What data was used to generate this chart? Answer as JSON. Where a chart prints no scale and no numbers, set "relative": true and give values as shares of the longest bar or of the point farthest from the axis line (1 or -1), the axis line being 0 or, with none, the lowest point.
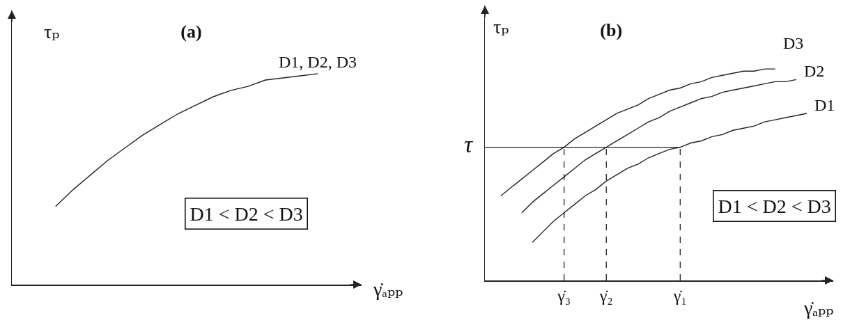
{
  "chart_data": [
    {
      "type": "line",
      "title": "(a)",
      "xlabel": "γ̇ₐₚₚ",
      "ylabel": "τₚ",
      "relative": true,
      "categories": [
        null,
        null,
        null,
        null,
        null,
        null,
        null,
        null,
        null,
        null,
        null,
        null,
        null,
        null,
        null,
        null,
        null,
        null,
        null,
        null
      ],
      "series": [
        {
          "name": "D1, D2, D3",
          "color": "#222222",
          "values": [
            null,
            null,
            0.37,
            0.45,
            0.52,
            0.59,
            0.65,
            0.71,
            0.76,
            0.81,
            0.85,
            0.89,
            0.92,
            0.94,
            0.97,
            0.98,
            0.99,
            1,
            null,
            null
          ]
        }
      ],
      "annotations": [
        "D1 < D2 < D3"
      ]
    },
    {
      "type": "line",
      "title": "(b)",
      "xlabel": "γ̇ₐₚₚ",
      "ylabel": "τₚ",
      "relative": true,
      "categories": [
        null,
        null,
        null,
        null,
        null,
        null,
        null,
        "γ̇₃",
        null,
        null,
        null,
        "γ̇₂",
        null,
        null,
        null,
        null,
        null,
        null,
        "γ̇₁",
        null,
        null,
        null,
        null,
        null,
        null,
        null,
        null,
        null,
        null,
        null,
        null,
        null,
        null
      ],
      "series": [
        {
          "name": "D3",
          "color": "#222222",
          "values": [
            null,
            0.4,
            0.44,
            0.48,
            0.52,
            0.56,
            0.6,
            0.63,
            0.67,
            0.7,
            0.73,
            0.76,
            0.79,
            0.81,
            0.83,
            0.86,
            0.88,
            0.9,
            0.91,
            0.93,
            0.94,
            0.96,
            0.97,
            0.98,
            0.99,
            0.99,
            1,
            1,
            null,
            null,
            null,
            null,
            null
          ]
        },
        {
          "name": "D2",
          "color": "#222222",
          "values": [
            null,
            null,
            null,
            0.32,
            0.37,
            0.41,
            0.45,
            0.49,
            0.53,
            0.57,
            0.6,
            0.63,
            0.66,
            0.69,
            0.72,
            0.75,
            0.77,
            0.8,
            0.82,
            0.84,
            0.86,
            0.87,
            0.89,
            0.9,
            0.91,
            0.92,
            0.93,
            0.94,
            0.94,
            0.95,
            null,
            null,
            null
          ]
        },
        {
          "name": "D1",
          "color": "#222222",
          "values": [
            null,
            null,
            null,
            null,
            0.18,
            0.23,
            0.28,
            0.32,
            0.36,
            0.4,
            0.43,
            0.47,
            0.5,
            0.53,
            0.55,
            0.58,
            0.6,
            0.62,
            0.63,
            0.65,
            0.66,
            0.68,
            0.69,
            0.71,
            0.72,
            0.73,
            0.75,
            0.76,
            0.77,
            0.78,
            0.79,
            null,
            null
          ]
        }
      ],
      "ref_lines": [
        {
          "axis": "y",
          "value": 0.63,
          "label": "τ"
        },
        {
          "axis": "x",
          "value": "γ̇₃",
          "line_style": "dashed"
        },
        {
          "axis": "x",
          "value": "γ̇₂",
          "line_style": "dashed"
        },
        {
          "axis": "x",
          "value": "γ̇₁",
          "line_style": "dashed"
        }
      ],
      "annotations": [
        "D1 < D2 < D3"
      ]
    }
  ]
}
